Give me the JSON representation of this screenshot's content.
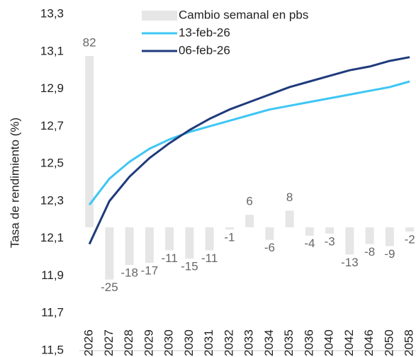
{
  "chart_data": {
    "type": "bar-line",
    "y_label": "Tasa de rendimiento (%)",
    "categories": [
      "2026",
      "2027",
      "2028",
      "2029",
      "2030",
      "2030",
      "2031",
      "2032",
      "2033",
      "2034",
      "2035",
      "2036",
      "2040",
      "2042",
      "2046",
      "2050",
      "2058"
    ],
    "ylim": [
      11.5,
      13.3
    ],
    "yticks": [
      {
        "value": 11.5,
        "label": "11,5"
      },
      {
        "value": 11.7,
        "label": "11,7"
      },
      {
        "value": 11.9,
        "label": "11,9"
      },
      {
        "value": 12.1,
        "label": "12,1"
      },
      {
        "value": 12.3,
        "label": "12,3"
      },
      {
        "value": 12.5,
        "label": "12,5"
      },
      {
        "value": 12.7,
        "label": "12,7"
      },
      {
        "value": 12.9,
        "label": "12,9"
      },
      {
        "value": 13.1,
        "label": "13,1"
      },
      {
        "value": 13.3,
        "label": "13,3"
      }
    ],
    "y2lim": [
      -59,
      102
    ],
    "legend": "top",
    "series": [
      {
        "name": "Cambio semanal en pbs",
        "type": "bar",
        "axis": "y2",
        "color": "#e6e6e6",
        "values": [
          82,
          -25,
          -18,
          -17,
          -11,
          -15,
          -11,
          -1,
          6,
          -6,
          8,
          -4,
          -3,
          -13,
          -8,
          -9,
          -2
        ]
      },
      {
        "name": "13-feb-26",
        "type": "line",
        "color": "#3ec6f4",
        "values": [
          12.28,
          12.42,
          12.51,
          12.58,
          12.63,
          12.67,
          12.7,
          12.73,
          12.76,
          12.79,
          12.81,
          12.83,
          12.85,
          12.87,
          12.89,
          12.91,
          12.94
        ]
      },
      {
        "name": "06-feb-26",
        "type": "line",
        "color": "#1f3b7c",
        "values": [
          12.07,
          12.3,
          12.43,
          12.53,
          12.61,
          12.68,
          12.74,
          12.79,
          12.83,
          12.87,
          12.91,
          12.94,
          12.97,
          13.0,
          13.02,
          13.05,
          13.07
        ]
      }
    ]
  }
}
